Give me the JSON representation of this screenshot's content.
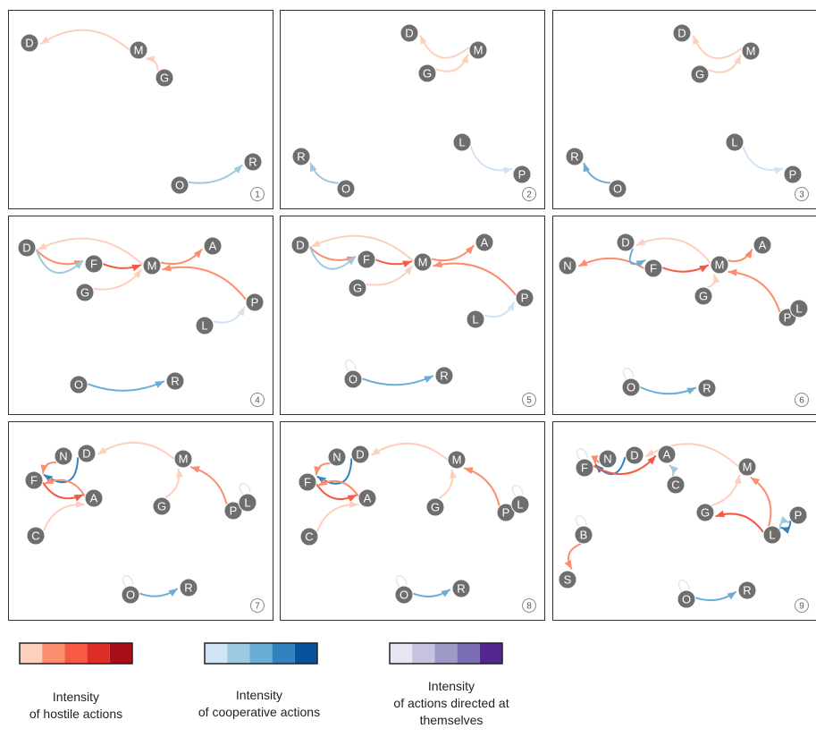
{
  "colors": {
    "node_fill": "#6e6e6e",
    "node_stroke": "#ffffff",
    "node_text": "#ffffff",
    "panel_border": "#333333",
    "hostile_scale": [
      "#fdd0bd",
      "#fc8d6e",
      "#f65a45",
      "#de2d26",
      "#a50f15"
    ],
    "cooperative_scale": [
      "#d2e3f3",
      "#9ecae1",
      "#6aaed6",
      "#3182bd",
      "#08519c"
    ],
    "self_scale": [
      "#e8e6f2",
      "#c6c3e0",
      "#9e9ac8",
      "#7a6db3",
      "#54278f"
    ]
  },
  "panels": [
    {
      "number": "1",
      "nodes": [
        {
          "id": "D"
        },
        {
          "id": "M"
        },
        {
          "id": "G"
        },
        {
          "id": "O"
        },
        {
          "id": "R"
        }
      ],
      "edges": [
        {
          "from": "M",
          "to": "D",
          "type": "hostile",
          "level": 1
        },
        {
          "from": "G",
          "to": "M",
          "type": "hostile",
          "level": 1
        },
        {
          "from": "O",
          "to": "R",
          "type": "cooperative",
          "level": 2
        }
      ]
    },
    {
      "number": "2",
      "nodes": [
        {
          "id": "D"
        },
        {
          "id": "M"
        },
        {
          "id": "G"
        },
        {
          "id": "R"
        },
        {
          "id": "O"
        },
        {
          "id": "L"
        },
        {
          "id": "P"
        }
      ],
      "edges": [
        {
          "from": "M",
          "to": "D",
          "type": "hostile",
          "level": 1
        },
        {
          "from": "G",
          "to": "M",
          "type": "hostile",
          "level": 1
        },
        {
          "from": "O",
          "to": "R",
          "type": "cooperative",
          "level": 2
        },
        {
          "from": "L",
          "to": "P",
          "type": "cooperative",
          "level": 1
        }
      ]
    },
    {
      "number": "3",
      "nodes": [
        {
          "id": "D"
        },
        {
          "id": "M"
        },
        {
          "id": "G"
        },
        {
          "id": "R"
        },
        {
          "id": "O"
        },
        {
          "id": "L"
        },
        {
          "id": "P"
        }
      ],
      "edges": [
        {
          "from": "M",
          "to": "D",
          "type": "hostile",
          "level": 1
        },
        {
          "from": "G",
          "to": "M",
          "type": "hostile",
          "level": 1
        },
        {
          "from": "O",
          "to": "R",
          "type": "cooperative",
          "level": 3
        },
        {
          "from": "L",
          "to": "P",
          "type": "cooperative",
          "level": 1
        }
      ]
    },
    {
      "number": "4",
      "nodes": [
        {
          "id": "D"
        },
        {
          "id": "F"
        },
        {
          "id": "M"
        },
        {
          "id": "A"
        },
        {
          "id": "G"
        },
        {
          "id": "P"
        },
        {
          "id": "L"
        },
        {
          "id": "O"
        },
        {
          "id": "R"
        }
      ],
      "edges": [
        {
          "from": "M",
          "to": "D",
          "type": "hostile",
          "level": 1
        },
        {
          "from": "D",
          "to": "F",
          "type": "hostile",
          "level": 2
        },
        {
          "from": "D",
          "to": "F",
          "type": "cooperative",
          "level": 2
        },
        {
          "from": "F",
          "to": "M",
          "type": "hostile",
          "level": 3
        },
        {
          "from": "M",
          "to": "A",
          "type": "hostile",
          "level": 2
        },
        {
          "from": "G",
          "to": "M",
          "type": "hostile",
          "level": 1
        },
        {
          "from": "P",
          "to": "M",
          "type": "hostile",
          "level": 2
        },
        {
          "from": "L",
          "to": "P",
          "type": "cooperative",
          "level": 1
        },
        {
          "from": "O",
          "to": "R",
          "type": "cooperative",
          "level": 3
        }
      ]
    },
    {
      "number": "5",
      "nodes": [
        {
          "id": "D"
        },
        {
          "id": "F"
        },
        {
          "id": "M"
        },
        {
          "id": "A"
        },
        {
          "id": "G"
        },
        {
          "id": "P"
        },
        {
          "id": "L"
        },
        {
          "id": "O"
        },
        {
          "id": "R"
        }
      ],
      "edges": [
        {
          "from": "M",
          "to": "D",
          "type": "hostile",
          "level": 1
        },
        {
          "from": "D",
          "to": "F",
          "type": "hostile",
          "level": 2
        },
        {
          "from": "D",
          "to": "F",
          "type": "cooperative",
          "level": 2
        },
        {
          "from": "F",
          "to": "M",
          "type": "hostile",
          "level": 3
        },
        {
          "from": "M",
          "to": "A",
          "type": "hostile",
          "level": 2
        },
        {
          "from": "G",
          "to": "M",
          "type": "hostile",
          "level": 1
        },
        {
          "from": "P",
          "to": "M",
          "type": "hostile",
          "level": 2
        },
        {
          "from": "L",
          "to": "P",
          "type": "cooperative",
          "level": 1
        },
        {
          "from": "O",
          "to": "R",
          "type": "cooperative",
          "level": 3
        },
        {
          "from": "O",
          "to": "O",
          "type": "self",
          "level": 1
        }
      ]
    },
    {
      "number": "6",
      "nodes": [
        {
          "id": "N"
        },
        {
          "id": "D"
        },
        {
          "id": "F"
        },
        {
          "id": "M"
        },
        {
          "id": "A"
        },
        {
          "id": "G"
        },
        {
          "id": "P"
        },
        {
          "id": "L"
        },
        {
          "id": "O"
        },
        {
          "id": "R"
        }
      ],
      "edges": [
        {
          "from": "F",
          "to": "N",
          "type": "hostile",
          "level": 2
        },
        {
          "from": "M",
          "to": "D",
          "type": "hostile",
          "level": 1
        },
        {
          "from": "D",
          "to": "F",
          "type": "cooperative",
          "level": 3
        },
        {
          "from": "F",
          "to": "M",
          "type": "hostile",
          "level": 3
        },
        {
          "from": "M",
          "to": "A",
          "type": "hostile",
          "level": 2
        },
        {
          "from": "G",
          "to": "M",
          "type": "hostile",
          "level": 1
        },
        {
          "from": "P",
          "to": "M",
          "type": "hostile",
          "level": 2
        },
        {
          "from": "O",
          "to": "R",
          "type": "cooperative",
          "level": 3
        },
        {
          "from": "O",
          "to": "O",
          "type": "self",
          "level": 1
        }
      ]
    },
    {
      "number": "7",
      "nodes": [
        {
          "id": "N"
        },
        {
          "id": "D"
        },
        {
          "id": "F"
        },
        {
          "id": "A"
        },
        {
          "id": "C"
        },
        {
          "id": "M"
        },
        {
          "id": "G"
        },
        {
          "id": "P"
        },
        {
          "id": "L"
        },
        {
          "id": "O"
        },
        {
          "id": "R"
        }
      ],
      "edges": [
        {
          "from": "D",
          "to": "F",
          "type": "cooperative",
          "level": 4
        },
        {
          "from": "N",
          "to": "F",
          "type": "hostile",
          "level": 2
        },
        {
          "from": "F",
          "to": "A",
          "type": "hostile",
          "level": 3
        },
        {
          "from": "A",
          "to": "F",
          "type": "hostile",
          "level": 2
        },
        {
          "from": "C",
          "to": "A",
          "type": "hostile",
          "level": 1
        },
        {
          "from": "M",
          "to": "D",
          "type": "hostile",
          "level": 1
        },
        {
          "from": "G",
          "to": "M",
          "type": "hostile",
          "level": 1
        },
        {
          "from": "P",
          "to": "M",
          "type": "hostile",
          "level": 2
        },
        {
          "from": "L",
          "to": "L",
          "type": "self",
          "level": 1
        },
        {
          "from": "O",
          "to": "R",
          "type": "cooperative",
          "level": 3
        },
        {
          "from": "O",
          "to": "O",
          "type": "self",
          "level": 1
        }
      ]
    },
    {
      "number": "8",
      "nodes": [
        {
          "id": "N"
        },
        {
          "id": "D"
        },
        {
          "id": "F"
        },
        {
          "id": "A"
        },
        {
          "id": "C"
        },
        {
          "id": "M"
        },
        {
          "id": "G"
        },
        {
          "id": "P"
        },
        {
          "id": "L"
        },
        {
          "id": "O"
        },
        {
          "id": "R"
        }
      ],
      "edges": [
        {
          "from": "D",
          "to": "F",
          "type": "cooperative",
          "level": 4
        },
        {
          "from": "N",
          "to": "F",
          "type": "hostile",
          "level": 2
        },
        {
          "from": "F",
          "to": "A",
          "type": "hostile",
          "level": 3
        },
        {
          "from": "A",
          "to": "F",
          "type": "hostile",
          "level": 2
        },
        {
          "from": "C",
          "to": "A",
          "type": "hostile",
          "level": 1
        },
        {
          "from": "M",
          "to": "D",
          "type": "hostile",
          "level": 1
        },
        {
          "from": "G",
          "to": "M",
          "type": "hostile",
          "level": 1
        },
        {
          "from": "P",
          "to": "M",
          "type": "hostile",
          "level": 2
        },
        {
          "from": "L",
          "to": "L",
          "type": "self",
          "level": 1
        },
        {
          "from": "O",
          "to": "R",
          "type": "cooperative",
          "level": 3
        },
        {
          "from": "O",
          "to": "O",
          "type": "self",
          "level": 1
        }
      ]
    },
    {
      "number": "9",
      "nodes": [
        {
          "id": "F"
        },
        {
          "id": "N"
        },
        {
          "id": "D"
        },
        {
          "id": "A"
        },
        {
          "id": "C"
        },
        {
          "id": "M"
        },
        {
          "id": "G"
        },
        {
          "id": "L"
        },
        {
          "id": "P"
        },
        {
          "id": "B"
        },
        {
          "id": "S"
        },
        {
          "id": "O"
        },
        {
          "id": "R"
        }
      ],
      "edges": [
        {
          "from": "D",
          "to": "F",
          "type": "cooperative",
          "level": 4
        },
        {
          "from": "N",
          "to": "F",
          "type": "hostile",
          "level": 2
        },
        {
          "from": "F",
          "to": "A",
          "type": "hostile",
          "level": 3
        },
        {
          "from": "C",
          "to": "A",
          "type": "cooperative",
          "level": 2
        },
        {
          "from": "M",
          "to": "D",
          "type": "hostile",
          "level": 1
        },
        {
          "from": "G",
          "to": "M",
          "type": "hostile",
          "level": 1
        },
        {
          "from": "L",
          "to": "G",
          "type": "hostile",
          "level": 3
        },
        {
          "from": "L",
          "to": "M",
          "type": "hostile",
          "level": 2
        },
        {
          "from": "P",
          "to": "L",
          "type": "cooperative",
          "level": 4
        },
        {
          "from": "L",
          "to": "P",
          "type": "cooperative",
          "level": 2
        },
        {
          "from": "B",
          "to": "S",
          "type": "hostile",
          "level": 2
        },
        {
          "from": "B",
          "to": "B",
          "type": "self",
          "level": 1
        },
        {
          "from": "F",
          "to": "F",
          "type": "self",
          "level": 1
        },
        {
          "from": "O",
          "to": "R",
          "type": "cooperative",
          "level": 3
        },
        {
          "from": "O",
          "to": "O",
          "type": "self",
          "level": 1
        }
      ]
    }
  ],
  "legend": {
    "hostile": {
      "line1": "Intensity",
      "line2": "of hostile actions"
    },
    "cooperative": {
      "line1": "Intensity",
      "line2": "of cooperative actions"
    },
    "self": {
      "line1": "Intensity",
      "line2": "of actions directed at",
      "line3": "themselves"
    }
  }
}
